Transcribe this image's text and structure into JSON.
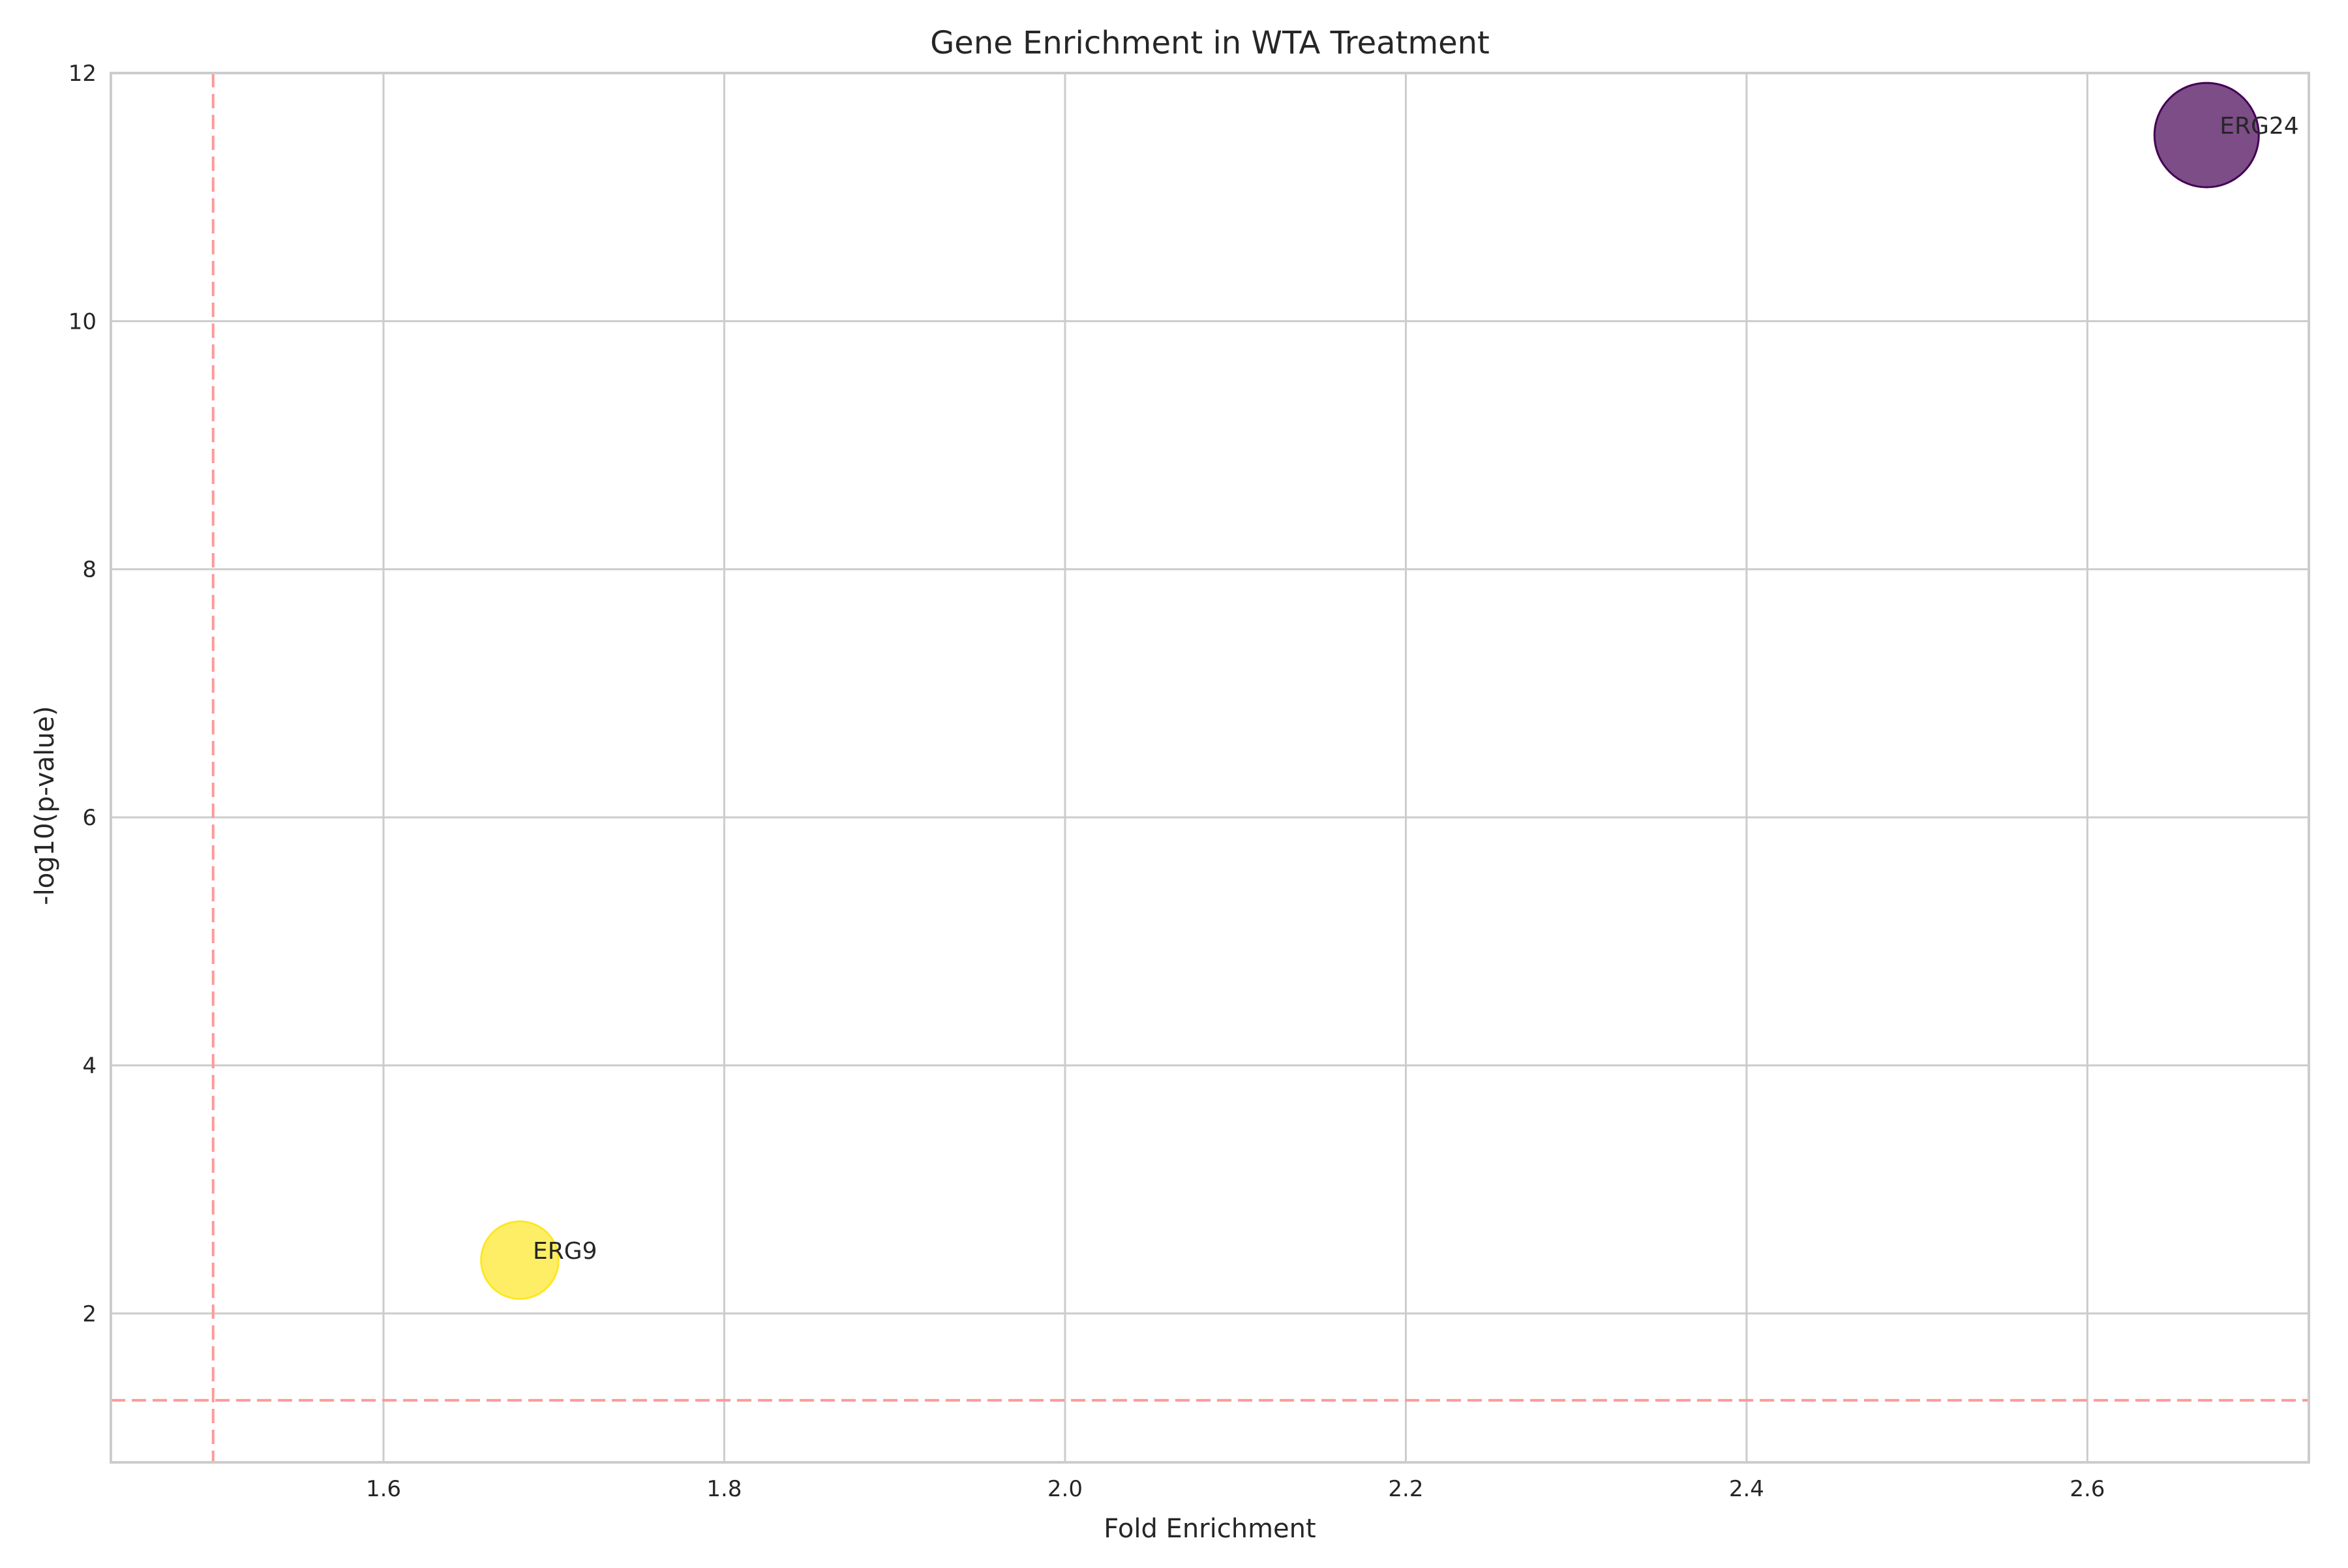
{
  "chart_data": {
    "type": "scatter",
    "title": "Gene Enrichment in WTA Treatment",
    "xlabel": "Fold Enrichment",
    "ylabel": "-log10(p-value)",
    "xlim": [
      1.44,
      2.73
    ],
    "ylim": [
      0.8,
      12
    ],
    "xticks": [
      1.6,
      1.8,
      2.0,
      2.2,
      2.4,
      2.6
    ],
    "xtick_labels": [
      "1.6",
      "1.8",
      "2.0",
      "2.2",
      "2.4",
      "2.6"
    ],
    "yticks": [
      2,
      4,
      6,
      8,
      10,
      12
    ],
    "ytick_labels": [
      "2",
      "4",
      "6",
      "8",
      "10",
      "12"
    ],
    "grid": true,
    "points": [
      {
        "label": "ERG24",
        "x": 2.67,
        "y": 11.5,
        "size_rel": 1.0,
        "color": "#440154"
      },
      {
        "label": "ERG9",
        "x": 1.68,
        "y": 2.43,
        "size_rel": 0.55,
        "color": "#fde725"
      }
    ],
    "thresholds": {
      "x": 1.5,
      "y": 1.3,
      "color": "#ff9999"
    },
    "colors": {
      "grid": "#cccccc",
      "spine": "#cccccc",
      "text": "#262626"
    }
  }
}
